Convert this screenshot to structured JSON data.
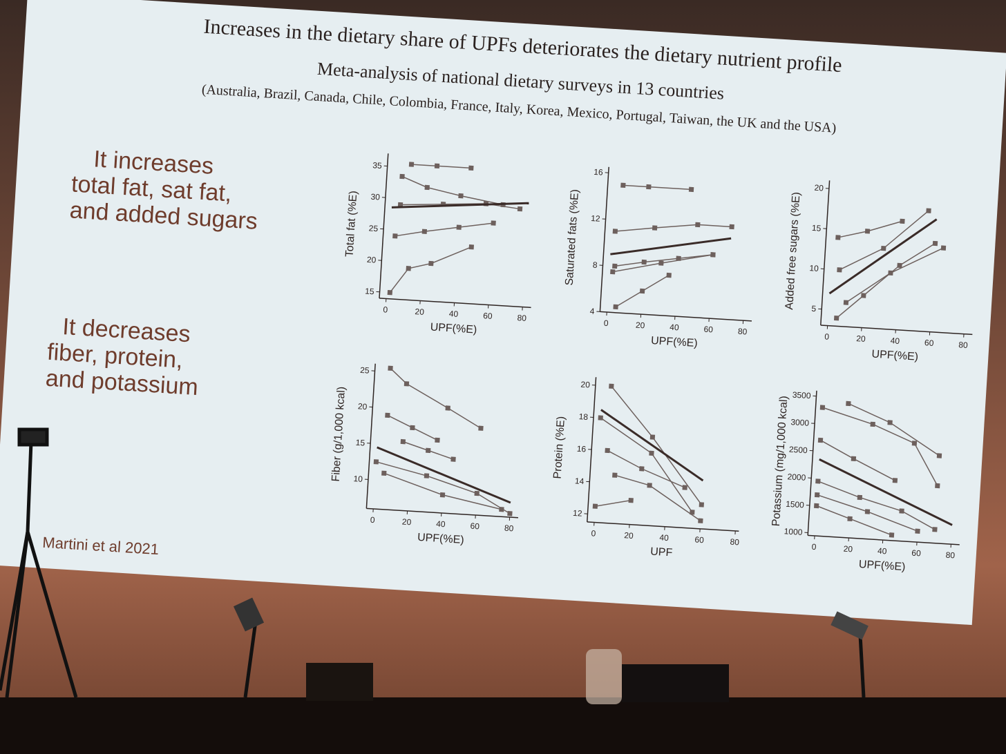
{
  "slide": {
    "title": "Increases in the dietary share of UPFs deteriorates the dietary nutrient profile",
    "subtitle": "Meta-analysis of national dietary surveys in 13 countries",
    "countries": "(Australia, Brazil, Canada, Chile, Colombia, France, Italy, Korea, Mexico, Portugal, Taiwan, the UK and the USA)",
    "increase_text": [
      "It increases",
      "total fat, sat fat,",
      "and added sugars"
    ],
    "decrease_text": [
      "It decreases",
      "fiber, protein,",
      "and potassium"
    ],
    "citation": "Martini et al 2021"
  },
  "chart_data": [
    {
      "type": "line",
      "y_label": "Total fat (%E)",
      "x_label": "UPF(%E)",
      "xlim": [
        -4,
        85
      ],
      "ylim": [
        14,
        37
      ],
      "xticks": [
        0,
        20,
        40,
        60,
        80
      ],
      "yticks": [
        15,
        20,
        25,
        30,
        35
      ],
      "color": "#6d605d",
      "pooled_color": "#3a2b28",
      "series": [
        {
          "x": [
            2,
            12,
            25,
            48
          ],
          "values": [
            15,
            19,
            20,
            23
          ]
        },
        {
          "x": [
            3,
            20,
            40,
            60
          ],
          "values": [
            24,
            25,
            26,
            27
          ]
        },
        {
          "x": [
            5,
            20,
            40,
            65
          ],
          "values": [
            33.5,
            32,
            31,
            30
          ]
        },
        {
          "x": [
            10,
            25,
            45
          ],
          "values": [
            35.5,
            35.5,
            35.5
          ]
        },
        {
          "x": [
            5,
            30,
            55,
            75
          ],
          "values": [
            29,
            29.5,
            30,
            29.5
          ]
        }
      ],
      "pooled": {
        "x": [
          0,
          80
        ],
        "values": [
          28.5,
          30.5
        ]
      }
    },
    {
      "type": "line",
      "y_label": "Saturated fats (%E)",
      "x_label": "UPF(%E)",
      "xlim": [
        -4,
        85
      ],
      "ylim": [
        4,
        16.5
      ],
      "xticks": [
        0,
        20,
        40,
        60,
        80
      ],
      "yticks": [
        4,
        8,
        12,
        16
      ],
      "color": "#6d605d",
      "pooled_color": "#3a2b28",
      "series": [
        {
          "x": [
            5,
            20,
            35
          ],
          "values": [
            4.5,
            6,
            7.5
          ]
        },
        {
          "x": [
            5,
            20,
            45
          ],
          "values": [
            15,
            15,
            15
          ]
        },
        {
          "x": [
            2,
            25,
            50,
            70
          ],
          "values": [
            11,
            11.5,
            12,
            12
          ]
        },
        {
          "x": [
            3,
            20,
            40,
            60
          ],
          "values": [
            8,
            8.5,
            9,
            9.5
          ]
        },
        {
          "x": [
            2,
            30,
            60
          ],
          "values": [
            7.5,
            8.5,
            9.5
          ]
        }
      ],
      "pooled": {
        "x": [
          0,
          70
        ],
        "values": [
          9,
          11
        ]
      }
    },
    {
      "type": "line",
      "y_label": "Added free sugars (%E)",
      "x_label": "UPF(%E)",
      "xlim": [
        -4,
        85
      ],
      "ylim": [
        3,
        21
      ],
      "xticks": [
        0,
        20,
        40,
        60,
        80
      ],
      "yticks": [
        5,
        10,
        15,
        20
      ],
      "color": "#6d605d",
      "pooled_color": "#3a2b28",
      "series": [
        {
          "x": [
            5,
            20,
            40,
            60
          ],
          "values": [
            4,
            7,
            11,
            14
          ]
        },
        {
          "x": [
            3,
            20,
            40
          ],
          "values": [
            14,
            15,
            16.5
          ]
        },
        {
          "x": [
            5,
            30,
            55
          ],
          "values": [
            10,
            13,
            18
          ]
        },
        {
          "x": [
            10,
            35,
            65
          ],
          "values": [
            6,
            10,
            13.5
          ]
        }
      ],
      "pooled": {
        "x": [
          0,
          60
        ],
        "values": [
          7,
          17
        ]
      }
    },
    {
      "type": "line",
      "y_label": "Fiber (g/1,000 kcal)",
      "x_label": "UPF(%E)",
      "xlim": [
        -4,
        85
      ],
      "ylim": [
        6,
        26
      ],
      "xticks": [
        0,
        20,
        40,
        60,
        80
      ],
      "yticks": [
        10,
        15,
        20,
        25
      ],
      "color": "#6d605d",
      "pooled_color": "#3a2b28",
      "series": [
        {
          "x": [
            5,
            15,
            40,
            60
          ],
          "values": [
            25.5,
            23.5,
            20.5,
            18
          ]
        },
        {
          "x": [
            5,
            20,
            35
          ],
          "values": [
            19,
            17.5,
            16
          ]
        },
        {
          "x": [
            15,
            30,
            45
          ],
          "values": [
            15.5,
            14.5,
            13.5
          ]
        },
        {
          "x": [
            0,
            30,
            60,
            80
          ],
          "values": [
            12.5,
            11,
            9,
            6.5
          ]
        },
        {
          "x": [
            5,
            40,
            75
          ],
          "values": [
            11,
            8.5,
            7
          ]
        }
      ],
      "pooled": {
        "x": [
          0,
          80
        ],
        "values": [
          14.5,
          8
        ]
      }
    },
    {
      "type": "line",
      "y_label": "Protein (%E)",
      "x_label": "UPF",
      "xlim": [
        -4,
        82
      ],
      "ylim": [
        11.5,
        20.5
      ],
      "xticks": [
        0,
        20,
        40,
        60,
        80
      ],
      "yticks": [
        12,
        14,
        16,
        18,
        20
      ],
      "color": "#6d605d",
      "pooled_color": "#3a2b28",
      "series": [
        {
          "x": [
            5,
            30,
            60
          ],
          "values": [
            20,
            17,
            13
          ]
        },
        {
          "x": [
            0,
            30,
            55
          ],
          "values": [
            18,
            16,
            12.5
          ]
        },
        {
          "x": [
            5,
            25,
            50
          ],
          "values": [
            16,
            15,
            14
          ]
        },
        {
          "x": [
            10,
            30,
            60
          ],
          "values": [
            14.5,
            14,
            12
          ]
        },
        {
          "x": [
            0,
            20
          ],
          "values": [
            12.5,
            13
          ]
        }
      ],
      "pooled": {
        "x": [
          0,
          60
        ],
        "values": [
          18.5,
          14.5
        ]
      }
    },
    {
      "type": "line",
      "y_label": "Potassium (mg/1,000 kcal)",
      "x_label": "UPF(%E)",
      "xlim": [
        -4,
        85
      ],
      "ylim": [
        950,
        3600
      ],
      "xticks": [
        0,
        20,
        40,
        60,
        80
      ],
      "yticks": [
        1000,
        1500,
        2000,
        2500,
        3000,
        3500
      ],
      "color": "#6d605d",
      "pooled_color": "#3a2b28",
      "series": [
        {
          "x": [
            15,
            40,
            70
          ],
          "values": [
            3400,
            3100,
            2550
          ]
        },
        {
          "x": [
            0,
            30,
            55,
            70
          ],
          "values": [
            3300,
            3050,
            2750,
            2000
          ]
        },
        {
          "x": [
            0,
            20,
            45
          ],
          "values": [
            2700,
            2400,
            2050
          ]
        },
        {
          "x": [
            0,
            25,
            50,
            70
          ],
          "values": [
            1950,
            1700,
            1500,
            1200
          ]
        },
        {
          "x": [
            0,
            30,
            60
          ],
          "values": [
            1700,
            1450,
            1150
          ]
        },
        {
          "x": [
            0,
            20,
            45
          ],
          "values": [
            1500,
            1300,
            1050
          ]
        }
      ],
      "pooled": {
        "x": [
          0,
          80
        ],
        "values": [
          2350,
          1300
        ]
      }
    }
  ]
}
